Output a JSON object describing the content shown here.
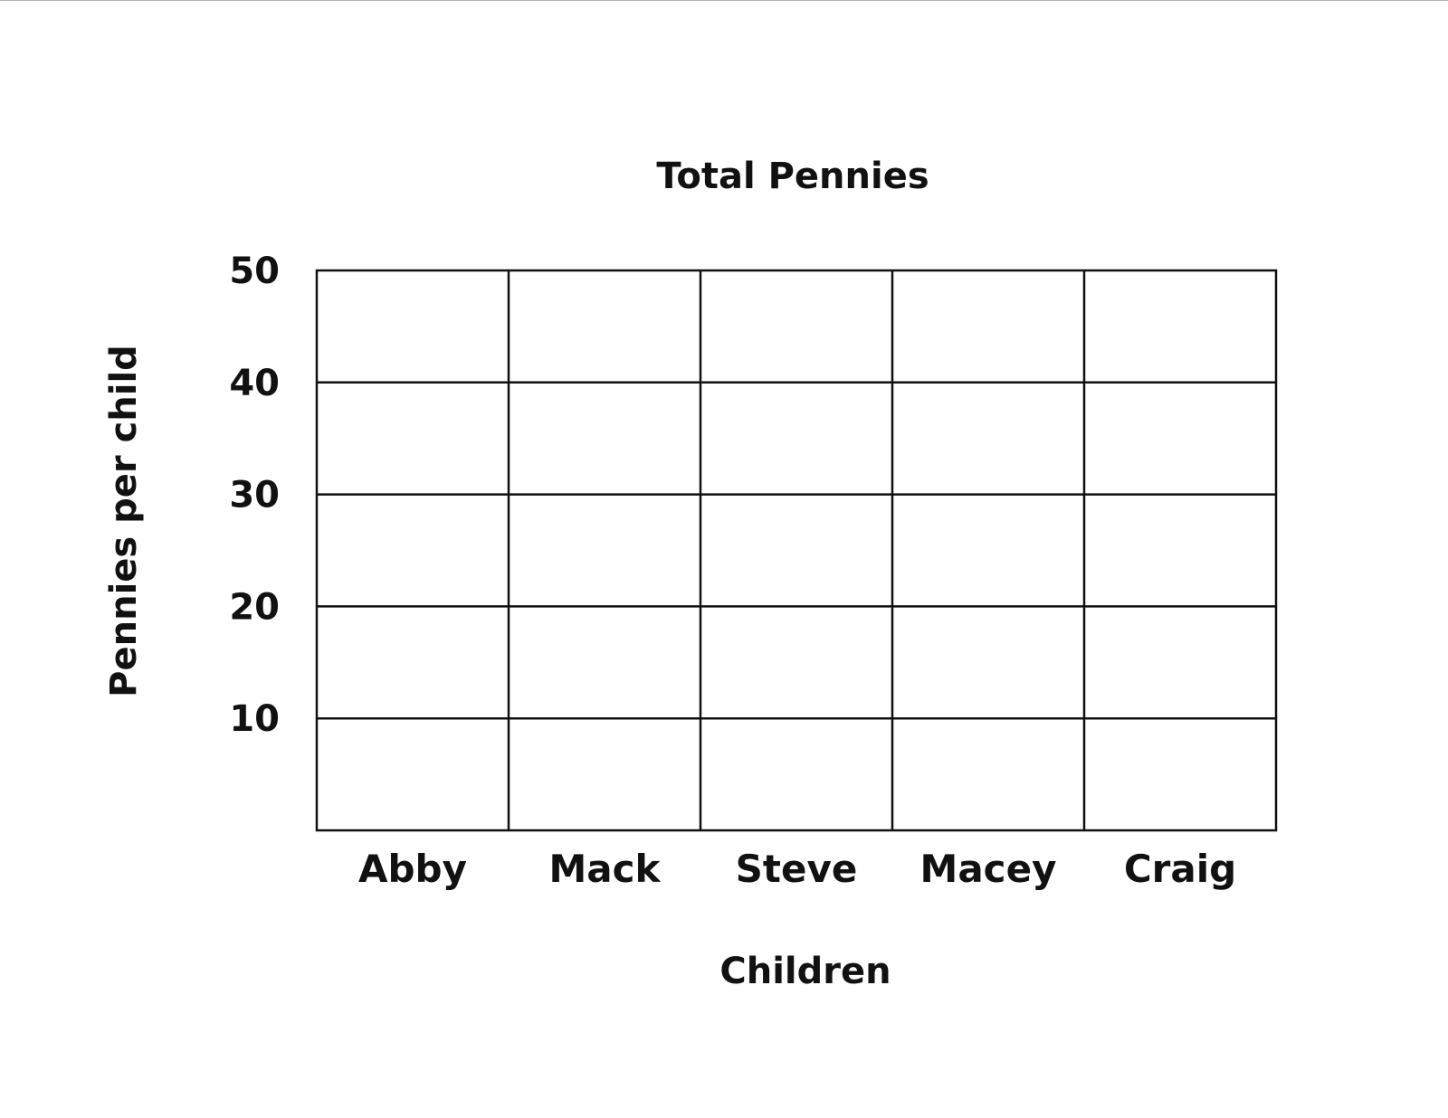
{
  "chart_data": {
    "type": "bar",
    "title": "Total Pennies",
    "xlabel": "Children",
    "ylabel": "Pennies per child",
    "categories": [
      "Abby",
      "Mack",
      "Steve",
      "Macey",
      "Craig"
    ],
    "series": [
      {
        "values": [
          null,
          null,
          null,
          null,
          null
        ]
      }
    ],
    "yticks": [
      10,
      20,
      30,
      40,
      50
    ],
    "ylim": [
      0,
      50
    ],
    "grid": true,
    "legend": "none",
    "colors": {
      "ink": "#111111",
      "background": "#ffffff"
    }
  }
}
